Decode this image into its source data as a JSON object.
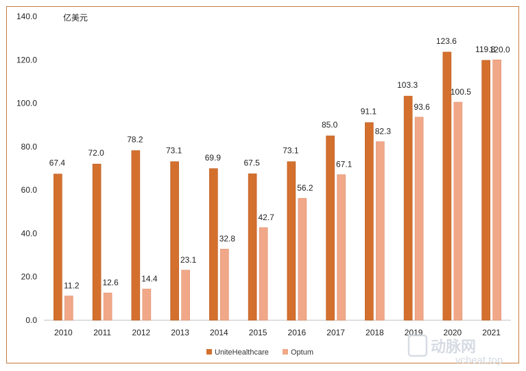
{
  "chart_data": {
    "type": "bar",
    "title": "",
    "ylabel": "亿美元",
    "xlabel": "",
    "ylim": [
      0,
      140
    ],
    "yticks": [
      "0.0",
      "20.0",
      "40.0",
      "60.0",
      "80.0",
      "100.0",
      "120.0",
      "140.0"
    ],
    "categories": [
      "2010",
      "2011",
      "2012",
      "2013",
      "2014",
      "2015",
      "2016",
      "2017",
      "2018",
      "2019",
      "2020",
      "2021"
    ],
    "series": [
      {
        "name": "UniteHealthcare",
        "color": "#d4702e",
        "values": [
          67.4,
          72.0,
          78.2,
          73.1,
          69.9,
          67.5,
          73.1,
          85.0,
          91.1,
          103.3,
          123.6,
          119.8
        ],
        "labels": [
          "67.4",
          "72.0",
          "78.2",
          "73.1",
          "69.9",
          "67.5",
          "73.1",
          "85.0",
          "91.1",
          "103.3",
          "123.6",
          "119.8"
        ]
      },
      {
        "name": "Optum",
        "color": "#f0a888",
        "values": [
          11.2,
          12.6,
          14.4,
          23.1,
          32.8,
          42.7,
          56.2,
          67.1,
          82.3,
          93.6,
          100.5,
          120.0
        ],
        "labels": [
          "11.2",
          "12.6",
          "14.4",
          "23.1",
          "32.8",
          "42.7",
          "56.2",
          "67.1",
          "82.3",
          "93.6",
          "100.5",
          "120.0"
        ]
      }
    ],
    "legend_position": "bottom-center",
    "grid": false
  },
  "watermark": {
    "text": "动脉网",
    "sub": "vcbeat.top"
  }
}
